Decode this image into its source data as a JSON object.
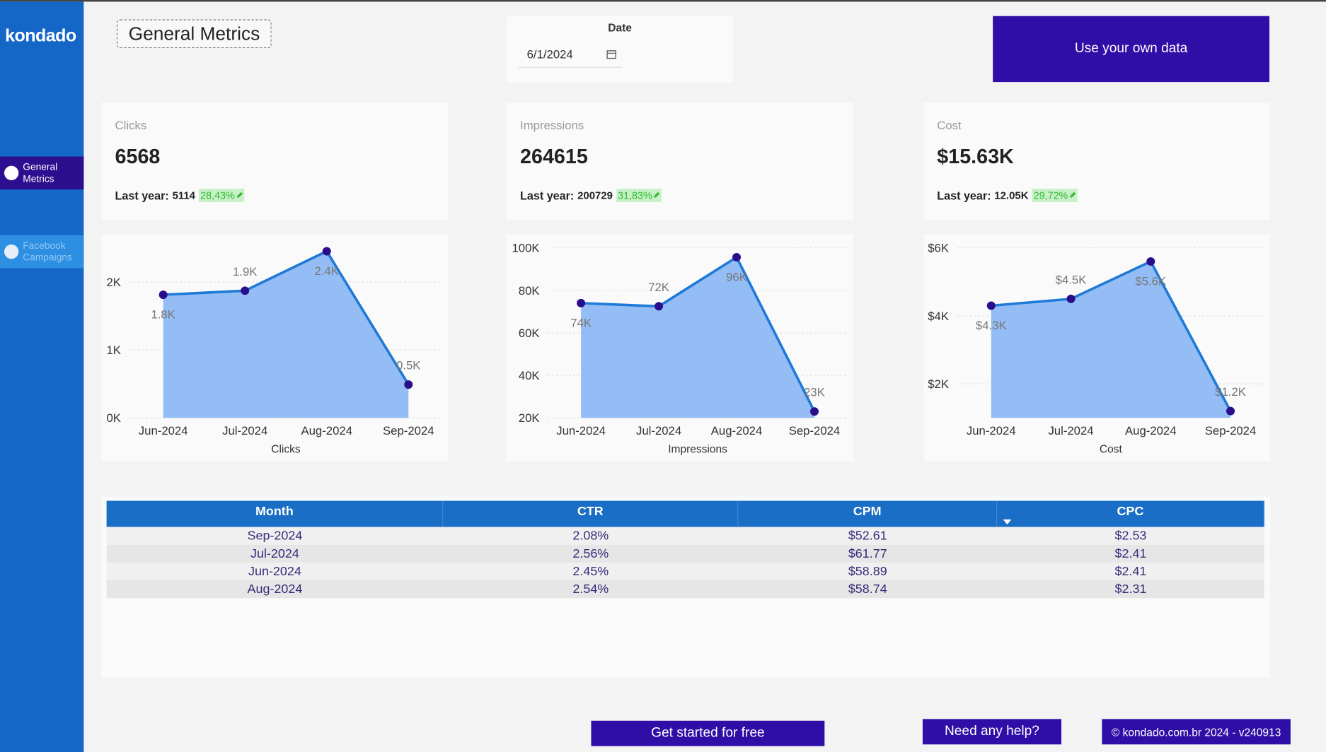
{
  "sidebar": {
    "logo": "kondado",
    "nav": [
      "General Metrics",
      "Facebook Campaigns"
    ]
  },
  "header": {
    "title": "General Metrics",
    "date_label": "Date",
    "date_value": "6/1/2024",
    "cta": "Use your own data"
  },
  "kpis": [
    {
      "label": "Clicks",
      "value": "6568",
      "last_year_label": "Last year:",
      "last_year": "5114",
      "change": "28,43%"
    },
    {
      "label": "Impressions",
      "value": "264615",
      "last_year_label": "Last year:",
      "last_year": "200729",
      "change": "31,83%"
    },
    {
      "label": "Cost",
      "value": "$15.63K",
      "last_year_label": "Last year:",
      "last_year": "12.05K",
      "change": "29,72%"
    }
  ],
  "chart_data": [
    {
      "type": "line",
      "x_label": "Clicks",
      "categories": [
        "Jun-2024",
        "Jul-2024",
        "Aug-2024",
        "Sep-2024"
      ],
      "values": [
        1810,
        1870,
        2450,
        490
      ],
      "value_labels": [
        "1.8K",
        "1.9K",
        "2.4K",
        "0.5K"
      ],
      "ylim": [
        0,
        2500
      ],
      "yticks": [
        {
          "value": 0,
          "label": "0K"
        },
        {
          "value": 1000,
          "label": "1K"
        },
        {
          "value": 2000,
          "label": "2K"
        }
      ],
      "color": "#1e7ad6",
      "marker_color": "#2b0d8c",
      "area_color": "#94bdf5",
      "grid": true
    },
    {
      "type": "line",
      "x_label": "Impressions",
      "categories": [
        "Jun-2024",
        "Jul-2024",
        "Aug-2024",
        "Sep-2024"
      ],
      "values": [
        74000,
        72500,
        95600,
        23000
      ],
      "value_labels": [
        "74K",
        "72K",
        "96K",
        "23K"
      ],
      "ylim": [
        20000,
        100000
      ],
      "yticks": [
        {
          "value": 20000,
          "label": "20K"
        },
        {
          "value": 40000,
          "label": "40K"
        },
        {
          "value": 60000,
          "label": "60K"
        },
        {
          "value": 80000,
          "label": "80K"
        },
        {
          "value": 100000,
          "label": "100K"
        }
      ],
      "color": "#1e7ad6",
      "marker_color": "#2b0d8c",
      "area_color": "#94bdf5",
      "grid": true
    },
    {
      "type": "line",
      "x_label": "Cost",
      "categories": [
        "Jun-2024",
        "Jul-2024",
        "Aug-2024",
        "Sep-2024"
      ],
      "values": [
        4300,
        4500,
        5600,
        1200
      ],
      "value_labels": [
        "$4.3K",
        "$4.5K",
        "$5.6K",
        "$1.2K"
      ],
      "ylim": [
        1000,
        6000
      ],
      "yticks": [
        {
          "value": 2000,
          "label": "$2K"
        },
        {
          "value": 4000,
          "label": "$4K"
        },
        {
          "value": 6000,
          "label": "$6K"
        }
      ],
      "color": "#1e7ad6",
      "marker_color": "#2b0d8c",
      "area_color": "#94bdf5",
      "grid": true
    }
  ],
  "table": {
    "columns": [
      "Month",
      "CTR",
      "CPM",
      "CPC"
    ],
    "rows": [
      [
        "Sep-2024",
        "2.08%",
        "$52.61",
        "$2.53"
      ],
      [
        "Jul-2024",
        "2.56%",
        "$61.77",
        "$2.41"
      ],
      [
        "Jun-2024",
        "2.45%",
        "$58.89",
        "$2.41"
      ],
      [
        "Aug-2024",
        "2.54%",
        "$58.74",
        "$2.31"
      ]
    ]
  },
  "footer": {
    "start": "Get started for free",
    "help": "Need any help?",
    "copyright": "© kondado.com.br 2024 - v240913"
  }
}
